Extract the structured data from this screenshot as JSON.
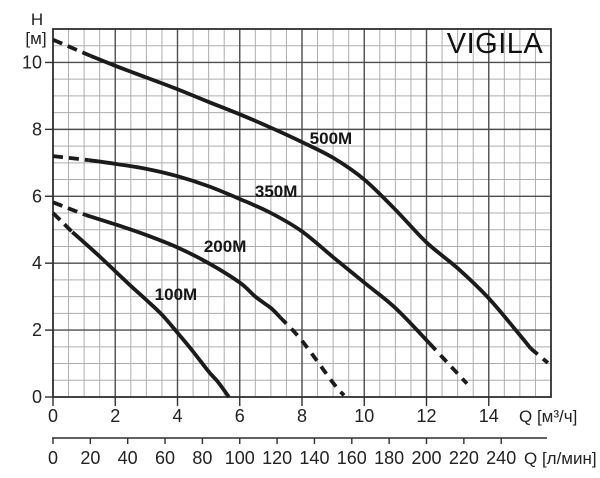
{
  "title": "VIGILA",
  "colors": {
    "curve": "#1b1b1b",
    "grid_minor": "#adadad",
    "grid_major": "#4d4d4d",
    "border": "#2f2f2f",
    "text": "#222222"
  },
  "y_axis": {
    "name": "H",
    "unit": "[м]",
    "ticks": [
      0,
      2,
      4,
      6,
      8,
      10
    ],
    "major_step": 2,
    "minor_step": 0.5
  },
  "x_axis_m3h": {
    "label": "Q [м³/ч]",
    "ticks": [
      0,
      2,
      4,
      6,
      8,
      10,
      12,
      14
    ],
    "major_step": 2,
    "minor_step": 0.5
  },
  "x_axis_lmin": {
    "label": "Q [л/мин]",
    "ticks": [
      0,
      20,
      40,
      60,
      80,
      100,
      120,
      140,
      160,
      180,
      200,
      220,
      240
    ],
    "lmin_per_m3h": 16.6667
  },
  "chart_data": {
    "type": "line",
    "title": "VIGILA",
    "xlabel": "Q [м³/ч] (top scale) / Q [л/мин] (bottom scale)",
    "ylabel": "H [м]",
    "xlim": [
      0,
      16
    ],
    "ylim": [
      0,
      11
    ],
    "grid": "major+minor",
    "legend_position": "labels-on-curves",
    "series": [
      {
        "name": "100M",
        "label_at": {
          "x": 3.95,
          "y": 3.08
        },
        "dash_head": [
          [
            0,
            5.5
          ],
          [
            0.62,
            4.93
          ]
        ],
        "solid": [
          [
            0.62,
            4.93
          ],
          [
            1,
            4.62
          ],
          [
            1.5,
            4.2
          ],
          [
            2,
            3.76
          ],
          [
            2.5,
            3.32
          ],
          [
            3,
            2.9
          ],
          [
            3.5,
            2.46
          ],
          [
            4,
            1.92
          ],
          [
            4.5,
            1.36
          ],
          [
            5,
            0.76
          ],
          [
            5.3,
            0.45
          ],
          [
            5.65,
            0
          ]
        ],
        "dash_tail": []
      },
      {
        "name": "200M",
        "label_at": {
          "x": 5.53,
          "y": 4.51
        },
        "dash_head": [
          [
            0,
            5.82
          ],
          [
            1.05,
            5.44
          ]
        ],
        "solid": [
          [
            1.05,
            5.44
          ],
          [
            2,
            5.16
          ],
          [
            3,
            4.84
          ],
          [
            4,
            4.47
          ],
          [
            5,
            4.0
          ],
          [
            6,
            3.42
          ],
          [
            6.5,
            3.0
          ],
          [
            7,
            2.66
          ],
          [
            7.3,
            2.38
          ]
        ],
        "dash_tail": [
          [
            7.3,
            2.38
          ],
          [
            8,
            1.68
          ],
          [
            9,
            0.42
          ],
          [
            9.35,
            0.05
          ]
        ]
      },
      {
        "name": "350M",
        "label_at": {
          "x": 7.17,
          "y": 6.16
        },
        "dash_head": [
          [
            0,
            7.2
          ],
          [
            1.15,
            7.08
          ]
        ],
        "solid": [
          [
            1.15,
            7.08
          ],
          [
            2,
            6.97
          ],
          [
            3,
            6.82
          ],
          [
            4,
            6.6
          ],
          [
            5,
            6.3
          ],
          [
            6,
            5.92
          ],
          [
            7,
            5.5
          ],
          [
            8,
            4.95
          ],
          [
            9,
            4.18
          ],
          [
            10,
            3.42
          ],
          [
            11,
            2.66
          ],
          [
            12.1,
            1.6
          ]
        ],
        "dash_tail": [
          [
            12.1,
            1.6
          ],
          [
            13.3,
            0.4
          ]
        ]
      },
      {
        "name": "500M",
        "label_at": {
          "x": 8.93,
          "y": 7.74
        },
        "dash_head": [
          [
            0,
            10.68
          ],
          [
            1.2,
            10.2
          ]
        ],
        "solid": [
          [
            1.2,
            10.2
          ],
          [
            2,
            9.9
          ],
          [
            3,
            9.55
          ],
          [
            4,
            9.2
          ],
          [
            5,
            8.82
          ],
          [
            6,
            8.45
          ],
          [
            7,
            8.05
          ],
          [
            8,
            7.62
          ],
          [
            9,
            7.15
          ],
          [
            10,
            6.5
          ],
          [
            11,
            5.6
          ],
          [
            12,
            4.62
          ],
          [
            13,
            3.85
          ],
          [
            14,
            2.95
          ],
          [
            15,
            1.85
          ],
          [
            15.35,
            1.45
          ]
        ],
        "dash_tail": [
          [
            15.35,
            1.45
          ],
          [
            15.9,
            1.02
          ]
        ]
      }
    ]
  }
}
